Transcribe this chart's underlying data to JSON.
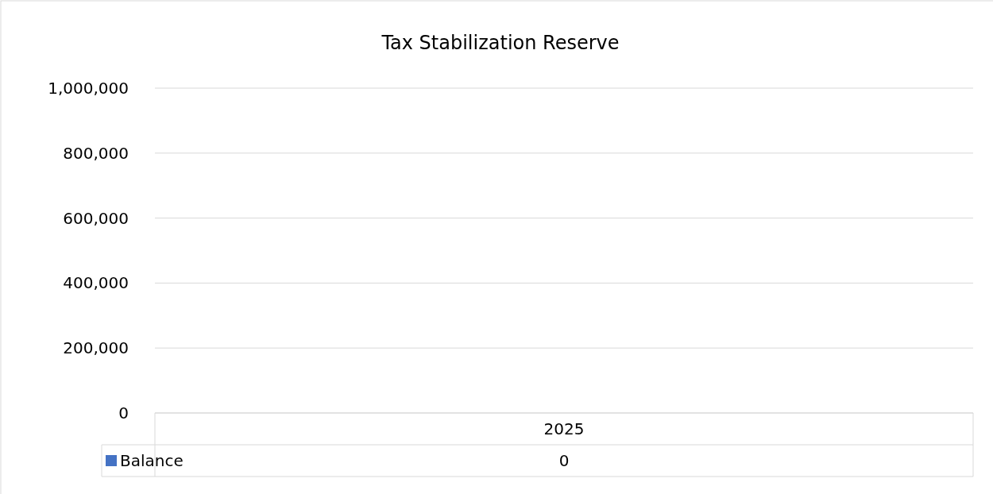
{
  "chart_data": {
    "type": "bar",
    "title": "Tax Stabilization Reserve",
    "categories": [
      "2025"
    ],
    "series": [
      {
        "name": "Balance",
        "color": "#4472c4",
        "values": [
          0
        ]
      }
    ],
    "ylim": [
      0,
      1000000
    ],
    "yticks": [
      {
        "value": 0,
        "label": "0"
      },
      {
        "value": 200000,
        "label": "200,000"
      },
      {
        "value": 400000,
        "label": "400,000"
      },
      {
        "value": 600000,
        "label": "600,000"
      },
      {
        "value": 800000,
        "label": "800,000"
      },
      {
        "value": 1000000,
        "label": "1,000,000"
      }
    ],
    "grid": "y",
    "data_labels": true,
    "legend": "bottom left"
  }
}
